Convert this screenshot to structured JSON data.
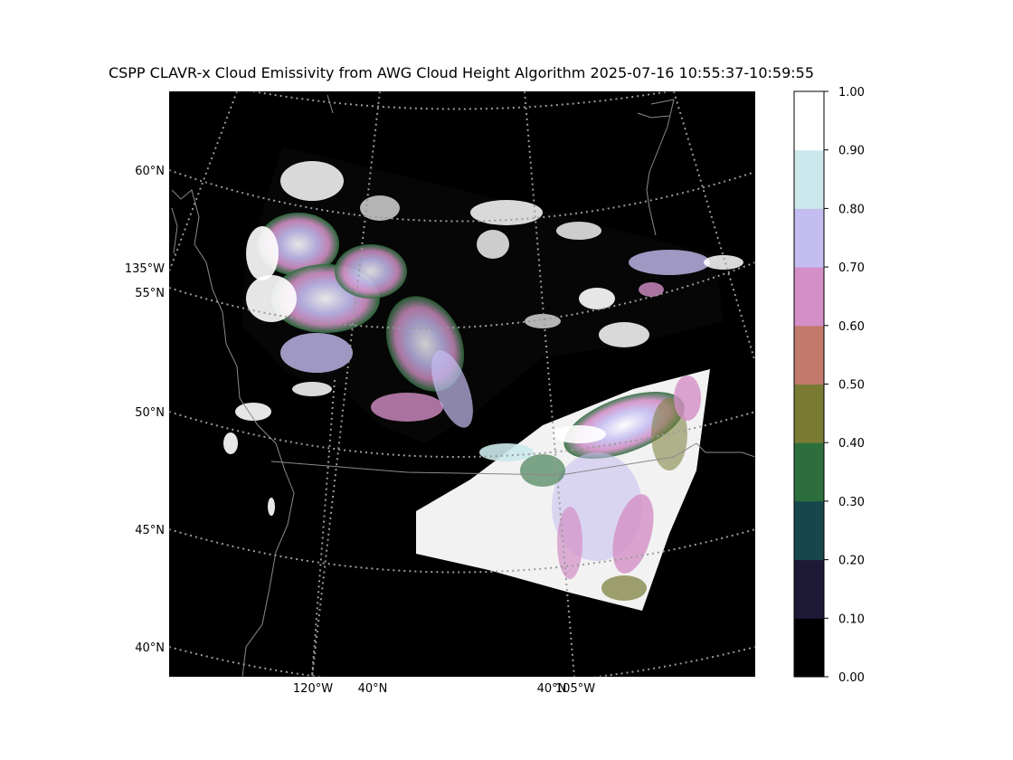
{
  "title": "CSPP CLAVR-x Cloud Emissivity from AWG Cloud Height Algorithm 2025-07-16 10:55:37-10:59:55",
  "map": {
    "lat_labels": [
      "60°N",
      "55°N",
      "50°N",
      "45°N",
      "40°N"
    ],
    "lon_labels": [
      "135°W",
      "120°W",
      "40°N",
      "40°N",
      "105°W"
    ],
    "background_color": "#000000",
    "gridline_color": "#9a9a9a",
    "coastline_color": "#8a8a8a"
  },
  "colorbar": {
    "ticks": [
      "1.00",
      "0.90",
      "0.80",
      "0.70",
      "0.60",
      "0.50",
      "0.40",
      "0.30",
      "0.20",
      "0.10",
      "0.00"
    ],
    "bins": [
      {
        "range": "0.00-0.10",
        "color": "#000000"
      },
      {
        "range": "0.10-0.20",
        "color": "#1e1937"
      },
      {
        "range": "0.20-0.30",
        "color": "#17474d"
      },
      {
        "range": "0.30-0.40",
        "color": "#2c6e3c"
      },
      {
        "range": "0.40-0.50",
        "color": "#797b35"
      },
      {
        "range": "0.50-0.60",
        "color": "#c27a6d"
      },
      {
        "range": "0.60-0.70",
        "color": "#d38fc6"
      },
      {
        "range": "0.70-0.80",
        "color": "#c4bdf1"
      },
      {
        "range": "0.80-0.90",
        "color": "#cbe9ec"
      },
      {
        "range": "0.90-1.00",
        "color": "#ffffff"
      }
    ]
  }
}
